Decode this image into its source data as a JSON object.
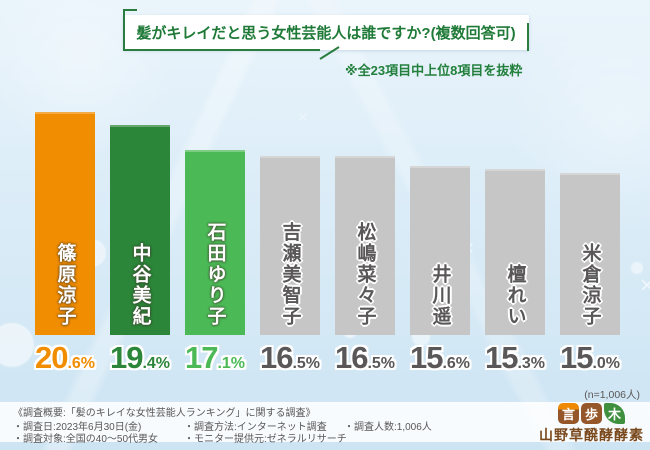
{
  "header": {
    "title": "髪がキレイだと思う女性芸能人は誰ですか?(複数回答可)",
    "note": "※全23項目中上位8項目を抜粋"
  },
  "sample_note": "(n=1,006人)",
  "chart_data": {
    "type": "bar",
    "title": "髪がキレイだと思う女性芸能人は誰ですか?(複数回答可)",
    "categories": [
      "篠原涼子",
      "中谷美紀",
      "石田ゆり子",
      "吉瀬美智子",
      "松嶋菜々子",
      "井川遥",
      "檀れい",
      "米倉涼子"
    ],
    "values": [
      20.6,
      19.4,
      17.1,
      16.5,
      16.5,
      15.6,
      15.3,
      15.0
    ],
    "unit": "%",
    "ylim": [
      0,
      22
    ],
    "grid": false,
    "legend": false,
    "bar_colors": [
      "#f18d00",
      "#2b8639",
      "#4bba56",
      "#c6c6c6",
      "#c6c6c6",
      "#c6c6c6",
      "#c6c6c6",
      "#c6c6c6"
    ],
    "annotation": "※全23項目中上位8項目を抜粋",
    "sample_size": "(n=1,006人)"
  },
  "bars": [
    {
      "name": "篠原涼子",
      "value": 20.6,
      "pct_main": "20",
      "pct_sub": ".6%",
      "bar_color": "#f18d00",
      "pct_color": "#f18d00",
      "name_style": "light"
    },
    {
      "name": "中谷美紀",
      "value": 19.4,
      "pct_main": "19",
      "pct_sub": ".4%",
      "bar_color": "#2b8639",
      "pct_color": "#2b8639",
      "name_style": "light"
    },
    {
      "name": "石田ゆり子",
      "value": 17.1,
      "pct_main": "17",
      "pct_sub": ".1%",
      "bar_color": "#4bba56",
      "pct_color": "#4bba56",
      "name_style": "light"
    },
    {
      "name": "吉瀬美智子",
      "value": 16.5,
      "pct_main": "16",
      "pct_sub": ".5%",
      "bar_color": "#c6c6c6",
      "pct_color": "#595757",
      "name_style": "dark"
    },
    {
      "name": "松嶋菜々子",
      "value": 16.5,
      "pct_main": "16",
      "pct_sub": ".5%",
      "bar_color": "#c6c6c6",
      "pct_color": "#595757",
      "name_style": "dark"
    },
    {
      "name": "井川遥",
      "value": 15.6,
      "pct_main": "15",
      "pct_sub": ".6%",
      "bar_color": "#c6c6c6",
      "pct_color": "#595757",
      "name_style": "dark"
    },
    {
      "name": "檀れい",
      "value": 15.3,
      "pct_main": "15",
      "pct_sub": ".3%",
      "bar_color": "#c6c6c6",
      "pct_color": "#595757",
      "name_style": "dark"
    },
    {
      "name": "米倉涼子",
      "value": 15.0,
      "pct_main": "15",
      "pct_sub": ".0%",
      "bar_color": "#c6c6c6",
      "pct_color": "#595757",
      "name_style": "dark"
    }
  ],
  "survey": {
    "overview": "《調査概要:「髪のキレイな女性芸能人ランキング」に関する調査》",
    "date": "・調査日:2023年6月30日(金)",
    "method": "・調査方法:インターネット調査",
    "count": "・調査人数:1,006人",
    "target": "・調査対象:全国の40〜50代男女",
    "monitor": "・モニター提供元:ゼネラルリサーチ"
  },
  "logo": {
    "icon1": "言",
    "icon2": "歩",
    "icon3": "木",
    "text": "山野草醗酵酵素"
  },
  "colors": {
    "accent_green": "#2a7d3f",
    "orange": "#f18d00",
    "dark_green": "#2b8639",
    "light_green": "#4bba56",
    "gray_bar": "#c6c6c6",
    "text_gray": "#595757",
    "logo_brown": "#95572a"
  }
}
